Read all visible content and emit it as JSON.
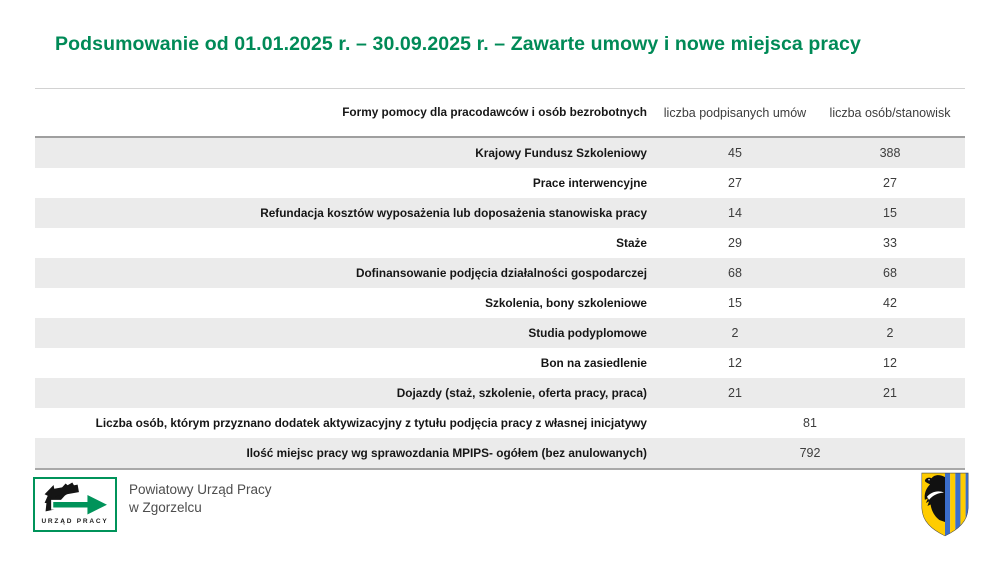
{
  "title": "Podsumowanie od 01.01.2025 r. – 30.09.2025 r. – Zawarte umowy i nowe miejsca pracy",
  "colors": {
    "title_green": "#008a57",
    "logo_green": "#00935a",
    "row_stripe_gray": "#ebebeb",
    "rule_gray": "#9f9f9f",
    "crest_blue": "#3b6ecb",
    "crest_yellow": "#ffcc00"
  },
  "table": {
    "headers": [
      "Formy pomocy dla pracodawców i osób bezrobotnych",
      "liczba podpisanych umów",
      "liczba osób/stanowisk"
    ],
    "rows": [
      {
        "label": "Krajowy Fundusz Szkoleniowy",
        "contracts": "45",
        "positions": "388"
      },
      {
        "label": "Prace interwencyjne",
        "contracts": "27",
        "positions": "27"
      },
      {
        "label": "Refundacja kosztów wyposażenia lub doposażenia stanowiska pracy",
        "contracts": "14",
        "positions": "15"
      },
      {
        "label": "Staże",
        "contracts": "29",
        "positions": "33"
      },
      {
        "label": "Dofinansowanie podjęcia działalności gospodarczej",
        "contracts": "68",
        "positions": "68"
      },
      {
        "label": "Szkolenia, bony szkoleniowe",
        "contracts": "15",
        "positions": "42"
      },
      {
        "label": "Studia podyplomowe",
        "contracts": "2",
        "positions": "2"
      },
      {
        "label": "Bon na zasiedlenie",
        "contracts": "12",
        "positions": "12"
      },
      {
        "label": "Dojazdy (staż, szkolenie, oferta pracy, praca)",
        "contracts": "21",
        "positions": "21"
      },
      {
        "label": "Liczba osób, którym przyznano dodatek aktywizacyjny z tytułu podjęcia pracy z własnej inicjatywy",
        "merged": "81"
      },
      {
        "label": "Ilość miejsc pracy wg sprawozdania MPIPS- ogółem (bez anulowanych)",
        "merged": "792"
      }
    ]
  },
  "footer": {
    "logo_caption": "URZĄD PRACY",
    "org_line1": "Powiatowy Urząd Pracy",
    "org_line2": "w Zgorzelcu"
  }
}
